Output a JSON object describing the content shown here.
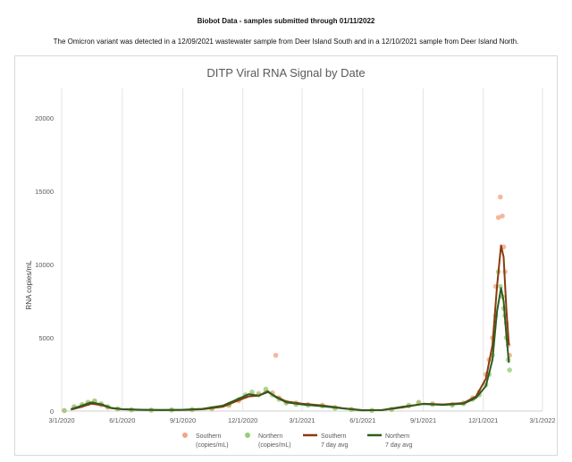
{
  "header": {
    "title": "Biobot Data - samples submitted through 01/11/2022",
    "subtitle": "The Omicron variant was detected in a 12/09/2021 wastewater sample from Deer Island South and in a 12/10/2021 sample from Deer Island North."
  },
  "chart_data": {
    "type": "scatter",
    "title": "DITP Viral RNA Signal by Date",
    "xlabel": "",
    "ylabel": "RNA copies/mL",
    "x_ticks": [
      "3/1/2020",
      "6/1/2020",
      "9/1/2020",
      "12/1/2020",
      "3/1/2021",
      "6/1/2021",
      "9/1/2021",
      "12/1/2021",
      "3/1/2022"
    ],
    "y_ticks": [
      "0",
      "5000",
      "10000",
      "15000",
      "20000"
    ],
    "ylim": [
      0,
      22000
    ],
    "xlim": [
      "2020-03-01",
      "2022-03-01"
    ],
    "grid": "vertical",
    "legend_position": "bottom",
    "legend": [
      {
        "label_line1": "Southern",
        "label_line2": "(copies/mL)",
        "kind": "marker",
        "color": "#f4a582"
      },
      {
        "label_line1": "Northern",
        "label_line2": "(copies/mL)",
        "kind": "marker",
        "color": "#9acd7a"
      },
      {
        "label_line1": "Southern",
        "label_line2": "7 day avg",
        "kind": "line",
        "color": "#8b3a0e"
      },
      {
        "label_line1": "Northern",
        "label_line2": "7 day avg",
        "kind": "line",
        "color": "#2e5e1e"
      }
    ],
    "series": [
      {
        "name": "Southern (copies/mL)",
        "kind": "points",
        "color": "#f4a582",
        "points": [
          {
            "x": "2020-03-05",
            "y": 30
          },
          {
            "x": "2020-03-20",
            "y": 250
          },
          {
            "x": "2020-04-01",
            "y": 380
          },
          {
            "x": "2020-04-10",
            "y": 520
          },
          {
            "x": "2020-04-20",
            "y": 650
          },
          {
            "x": "2020-04-30",
            "y": 420
          },
          {
            "x": "2020-05-10",
            "y": 250
          },
          {
            "x": "2020-05-25",
            "y": 150
          },
          {
            "x": "2020-06-15",
            "y": 80
          },
          {
            "x": "2020-07-15",
            "y": 60
          },
          {
            "x": "2020-08-15",
            "y": 70
          },
          {
            "x": "2020-09-15",
            "y": 90
          },
          {
            "x": "2020-10-15",
            "y": 150
          },
          {
            "x": "2020-11-10",
            "y": 380
          },
          {
            "x": "2020-11-25",
            "y": 700
          },
          {
            "x": "2020-12-05",
            "y": 1000
          },
          {
            "x": "2020-12-15",
            "y": 1150
          },
          {
            "x": "2020-12-25",
            "y": 1200
          },
          {
            "x": "2021-01-05",
            "y": 1350
          },
          {
            "x": "2021-01-15",
            "y": 1250
          },
          {
            "x": "2021-01-20",
            "y": 3800
          },
          {
            "x": "2021-01-25",
            "y": 900
          },
          {
            "x": "2021-02-05",
            "y": 600
          },
          {
            "x": "2021-02-20",
            "y": 550
          },
          {
            "x": "2021-03-10",
            "y": 450
          },
          {
            "x": "2021-04-01",
            "y": 400
          },
          {
            "x": "2021-04-20",
            "y": 250
          },
          {
            "x": "2021-05-15",
            "y": 120
          },
          {
            "x": "2021-06-15",
            "y": 50
          },
          {
            "x": "2021-07-15",
            "y": 100
          },
          {
            "x": "2021-08-10",
            "y": 350
          },
          {
            "x": "2021-08-25",
            "y": 600
          },
          {
            "x": "2021-09-15",
            "y": 500
          },
          {
            "x": "2021-10-15",
            "y": 450
          },
          {
            "x": "2021-11-01",
            "y": 550
          },
          {
            "x": "2021-11-15",
            "y": 900
          },
          {
            "x": "2021-11-25",
            "y": 1300
          },
          {
            "x": "2021-12-05",
            "y": 2500
          },
          {
            "x": "2021-12-10",
            "y": 3500
          },
          {
            "x": "2021-12-15",
            "y": 5000
          },
          {
            "x": "2021-12-20",
            "y": 8500
          },
          {
            "x": "2021-12-24",
            "y": 13200
          },
          {
            "x": "2021-12-27",
            "y": 14600
          },
          {
            "x": "2021-12-30",
            "y": 13300
          },
          {
            "x": "2022-01-01",
            "y": 11200
          },
          {
            "x": "2022-01-03",
            "y": 9500
          },
          {
            "x": "2022-01-05",
            "y": 6000
          },
          {
            "x": "2022-01-08",
            "y": 4500
          },
          {
            "x": "2022-01-10",
            "y": 3800
          }
        ]
      },
      {
        "name": "Northern (copies/mL)",
        "kind": "points",
        "color": "#9acd7a",
        "points": [
          {
            "x": "2020-03-05",
            "y": 40
          },
          {
            "x": "2020-03-20",
            "y": 300
          },
          {
            "x": "2020-04-01",
            "y": 450
          },
          {
            "x": "2020-04-10",
            "y": 600
          },
          {
            "x": "2020-04-20",
            "y": 700
          },
          {
            "x": "2020-04-30",
            "y": 500
          },
          {
            "x": "2020-05-10",
            "y": 300
          },
          {
            "x": "2020-05-25",
            "y": 150
          },
          {
            "x": "2020-06-15",
            "y": 90
          },
          {
            "x": "2020-07-15",
            "y": 70
          },
          {
            "x": "2020-08-15",
            "y": 80
          },
          {
            "x": "2020-09-15",
            "y": 100
          },
          {
            "x": "2020-10-15",
            "y": 180
          },
          {
            "x": "2020-11-10",
            "y": 450
          },
          {
            "x": "2020-11-25",
            "y": 800
          },
          {
            "x": "2020-12-05",
            "y": 1100
          },
          {
            "x": "2020-12-15",
            "y": 1300
          },
          {
            "x": "2020-12-25",
            "y": 1100
          },
          {
            "x": "2021-01-05",
            "y": 1500
          },
          {
            "x": "2021-01-15",
            "y": 1100
          },
          {
            "x": "2021-01-25",
            "y": 800
          },
          {
            "x": "2021-02-05",
            "y": 550
          },
          {
            "x": "2021-02-20",
            "y": 450
          },
          {
            "x": "2021-03-10",
            "y": 400
          },
          {
            "x": "2021-04-01",
            "y": 350
          },
          {
            "x": "2021-04-20",
            "y": 200
          },
          {
            "x": "2021-05-15",
            "y": 100
          },
          {
            "x": "2021-06-15",
            "y": 40
          },
          {
            "x": "2021-07-15",
            "y": 120
          },
          {
            "x": "2021-08-10",
            "y": 400
          },
          {
            "x": "2021-08-25",
            "y": 550
          },
          {
            "x": "2021-09-15",
            "y": 450
          },
          {
            "x": "2021-10-15",
            "y": 400
          },
          {
            "x": "2021-11-01",
            "y": 500
          },
          {
            "x": "2021-11-15",
            "y": 800
          },
          {
            "x": "2021-11-25",
            "y": 1100
          },
          {
            "x": "2021-12-05",
            "y": 1800
          },
          {
            "x": "2021-12-10",
            "y": 2500
          },
          {
            "x": "2021-12-15",
            "y": 3800
          },
          {
            "x": "2021-12-20",
            "y": 6500
          },
          {
            "x": "2021-12-24",
            "y": 9500
          },
          {
            "x": "2021-12-27",
            "y": 8500
          },
          {
            "x": "2021-12-30",
            "y": 7800
          },
          {
            "x": "2022-01-01",
            "y": 7000
          },
          {
            "x": "2022-01-03",
            "y": 6500
          },
          {
            "x": "2022-01-05",
            "y": 5000
          },
          {
            "x": "2022-01-08",
            "y": 3500
          },
          {
            "x": "2022-01-10",
            "y": 2800
          }
        ]
      },
      {
        "name": "Southern 7 day avg",
        "kind": "line",
        "color": "#8b3a0e",
        "points": [
          {
            "x": "2020-03-15",
            "y": 100
          },
          {
            "x": "2020-04-01",
            "y": 300
          },
          {
            "x": "2020-04-15",
            "y": 500
          },
          {
            "x": "2020-05-01",
            "y": 400
          },
          {
            "x": "2020-05-15",
            "y": 200
          },
          {
            "x": "2020-06-01",
            "y": 120
          },
          {
            "x": "2020-07-01",
            "y": 80
          },
          {
            "x": "2020-08-01",
            "y": 70
          },
          {
            "x": "2020-09-01",
            "y": 80
          },
          {
            "x": "2020-10-01",
            "y": 120
          },
          {
            "x": "2020-11-01",
            "y": 300
          },
          {
            "x": "2020-11-20",
            "y": 650
          },
          {
            "x": "2020-12-10",
            "y": 1000
          },
          {
            "x": "2020-12-25",
            "y": 1050
          },
          {
            "x": "2021-01-08",
            "y": 1300
          },
          {
            "x": "2021-01-20",
            "y": 1000
          },
          {
            "x": "2021-02-05",
            "y": 650
          },
          {
            "x": "2021-03-01",
            "y": 500
          },
          {
            "x": "2021-04-01",
            "y": 380
          },
          {
            "x": "2021-05-01",
            "y": 200
          },
          {
            "x": "2021-06-01",
            "y": 60
          },
          {
            "x": "2021-07-01",
            "y": 70
          },
          {
            "x": "2021-08-01",
            "y": 250
          },
          {
            "x": "2021-09-01",
            "y": 500
          },
          {
            "x": "2021-10-01",
            "y": 450
          },
          {
            "x": "2021-11-01",
            "y": 550
          },
          {
            "x": "2021-11-20",
            "y": 1000
          },
          {
            "x": "2021-12-05",
            "y": 2200
          },
          {
            "x": "2021-12-15",
            "y": 4500
          },
          {
            "x": "2021-12-22",
            "y": 8500
          },
          {
            "x": "2021-12-28",
            "y": 11300
          },
          {
            "x": "2022-01-01",
            "y": 10500
          },
          {
            "x": "2022-01-05",
            "y": 7000
          },
          {
            "x": "2022-01-09",
            "y": 4500
          }
        ]
      },
      {
        "name": "Northern 7 day avg",
        "kind": "line",
        "color": "#2e5e1e",
        "points": [
          {
            "x": "2020-03-15",
            "y": 120
          },
          {
            "x": "2020-04-01",
            "y": 380
          },
          {
            "x": "2020-04-15",
            "y": 600
          },
          {
            "x": "2020-05-01",
            "y": 450
          },
          {
            "x": "2020-05-15",
            "y": 220
          },
          {
            "x": "2020-06-01",
            "y": 130
          },
          {
            "x": "2020-07-01",
            "y": 90
          },
          {
            "x": "2020-08-01",
            "y": 80
          },
          {
            "x": "2020-09-01",
            "y": 90
          },
          {
            "x": "2020-10-01",
            "y": 150
          },
          {
            "x": "2020-11-01",
            "y": 380
          },
          {
            "x": "2020-11-20",
            "y": 750
          },
          {
            "x": "2020-12-10",
            "y": 1150
          },
          {
            "x": "2020-12-25",
            "y": 1050
          },
          {
            "x": "2021-01-08",
            "y": 1350
          },
          {
            "x": "2021-01-20",
            "y": 950
          },
          {
            "x": "2021-02-05",
            "y": 600
          },
          {
            "x": "2021-03-01",
            "y": 450
          },
          {
            "x": "2021-04-01",
            "y": 330
          },
          {
            "x": "2021-05-01",
            "y": 180
          },
          {
            "x": "2021-06-01",
            "y": 50
          },
          {
            "x": "2021-07-01",
            "y": 80
          },
          {
            "x": "2021-08-01",
            "y": 300
          },
          {
            "x": "2021-09-01",
            "y": 480
          },
          {
            "x": "2021-10-01",
            "y": 420
          },
          {
            "x": "2021-11-01",
            "y": 500
          },
          {
            "x": "2021-11-20",
            "y": 900
          },
          {
            "x": "2021-12-05",
            "y": 1700
          },
          {
            "x": "2021-12-15",
            "y": 3500
          },
          {
            "x": "2021-12-22",
            "y": 6800
          },
          {
            "x": "2021-12-28",
            "y": 8400
          },
          {
            "x": "2022-01-01",
            "y": 7500
          },
          {
            "x": "2022-01-05",
            "y": 5200
          },
          {
            "x": "2022-01-09",
            "y": 3300
          }
        ]
      }
    ]
  }
}
